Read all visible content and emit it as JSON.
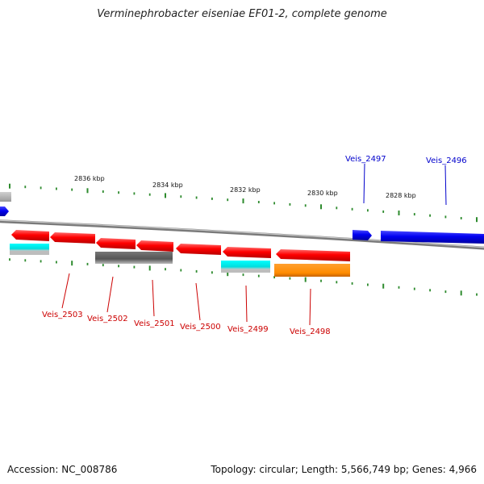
{
  "title": "Verminephrobacter eiseniae EF01-2, complete genome",
  "footer": {
    "accession": "Accession: NC_008786",
    "topology": "Topology: circular; Length: 5,566,749 bp; Genes: 4,966"
  },
  "scale_labels": [
    "2836 kbp",
    "2834 kbp",
    "2832 kbp",
    "2830 kbp",
    "2828 kbp"
  ],
  "colors": {
    "reverse_gene": "#ff0000",
    "forward_gene": "#0000ff",
    "backbone": "#888888",
    "tick": "#2e8b2e",
    "label_red": "#cc0000",
    "label_blue": "#0000cc",
    "gray_feature": "#555555",
    "cyan_feature": "#00e0e0",
    "orange_feature": "#ff8c00"
  },
  "genes": [
    {
      "name": "Veis_2503",
      "strand": "reverse"
    },
    {
      "name": "Veis_2502",
      "strand": "reverse"
    },
    {
      "name": "Veis_2501",
      "strand": "reverse"
    },
    {
      "name": "Veis_2500",
      "strand": "reverse"
    },
    {
      "name": "Veis_2499",
      "strand": "reverse"
    },
    {
      "name": "Veis_2498",
      "strand": "reverse"
    },
    {
      "name": "Veis_2497",
      "strand": "forward"
    },
    {
      "name": "Veis_2496",
      "strand": "forward"
    }
  ]
}
